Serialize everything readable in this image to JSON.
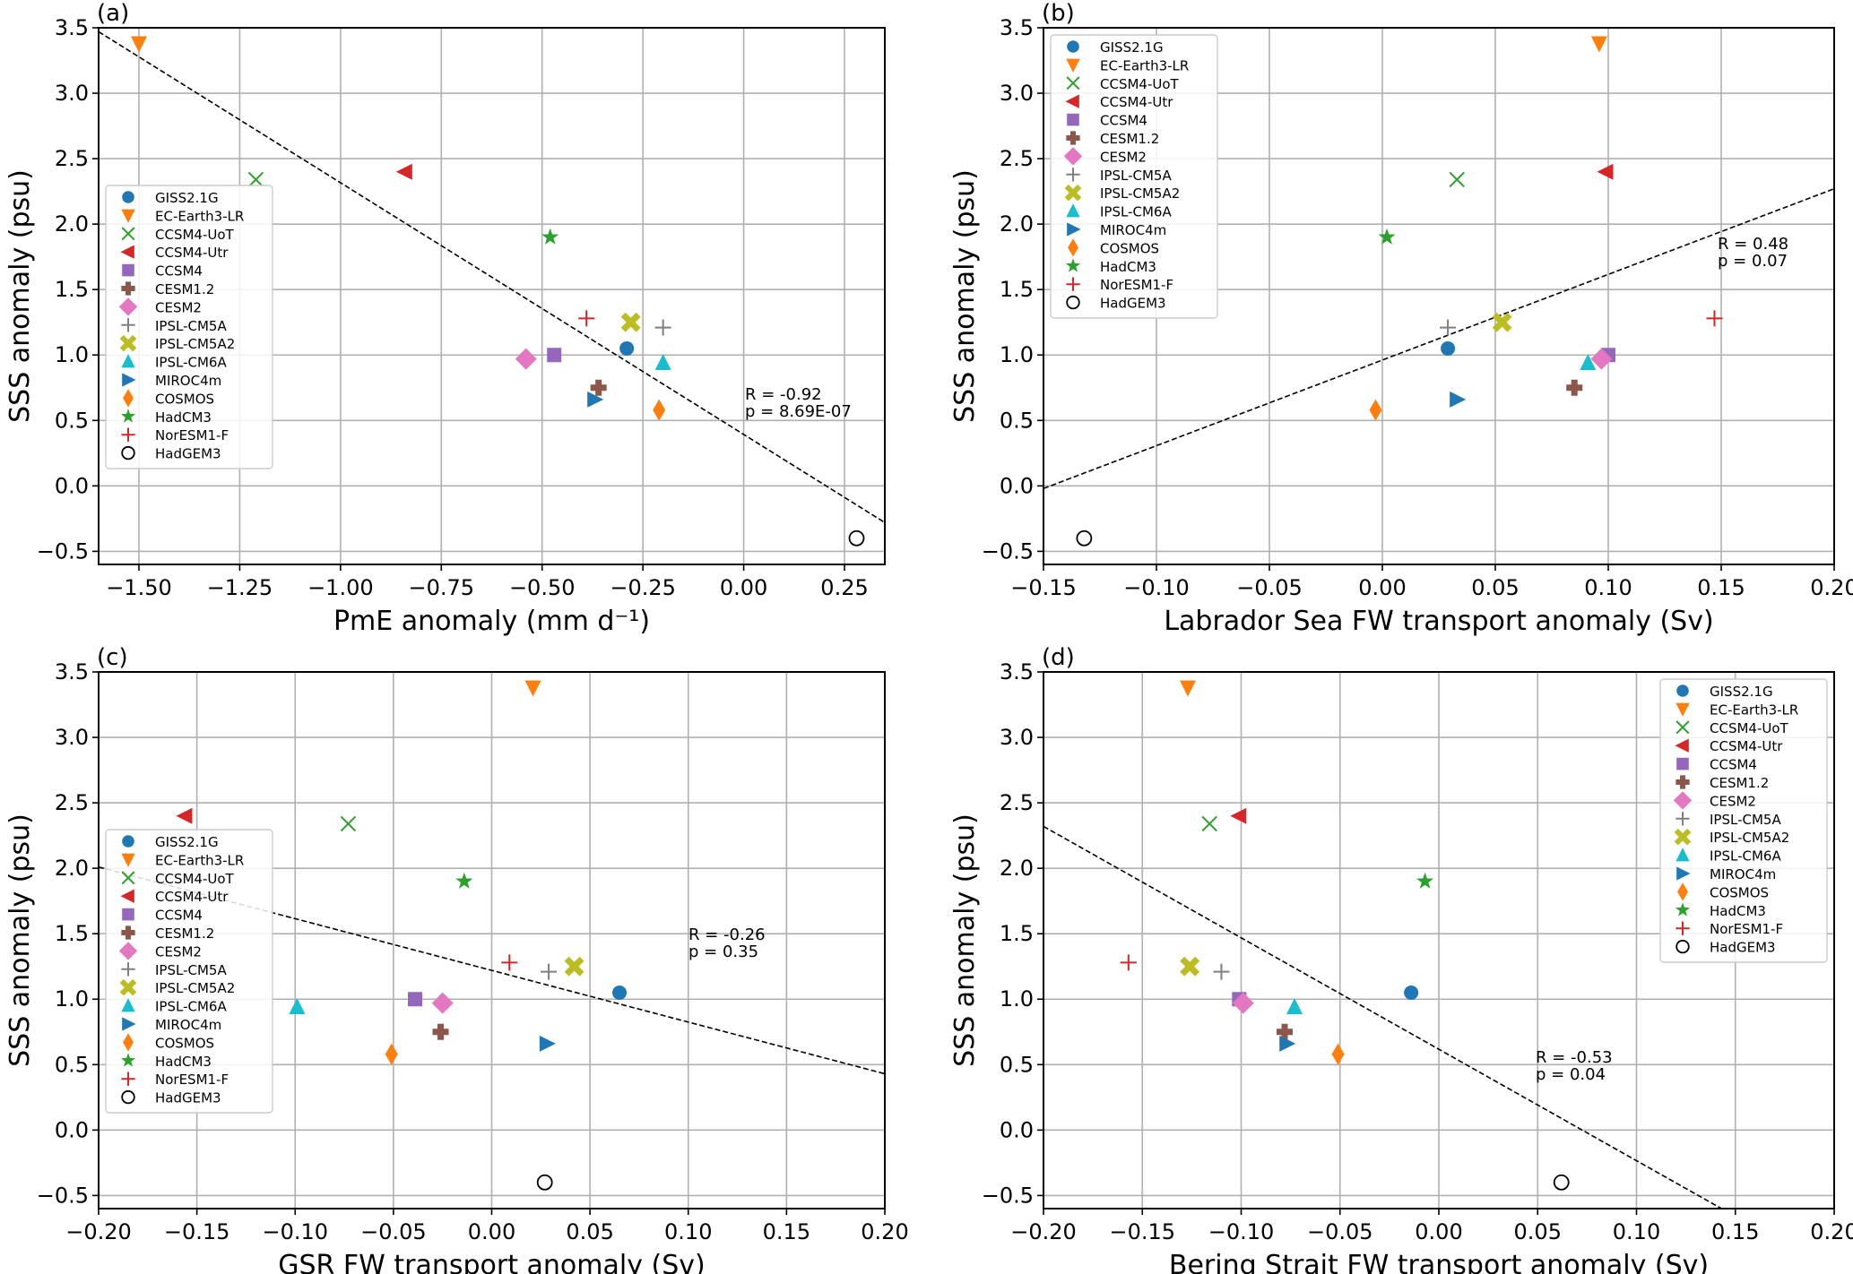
{
  "figure": {
    "ylabel": "SSS anomaly (psu)"
  },
  "models": [
    {
      "name": "GISS2.1G",
      "marker": "circle",
      "color": "#1f77b4"
    },
    {
      "name": "EC-Earth3-LR",
      "marker": "triangle-down",
      "color": "#ff7f0e"
    },
    {
      "name": "CCSM4-UoT",
      "marker": "x",
      "color": "#2ca02c"
    },
    {
      "name": "CCSM4-Utr",
      "marker": "triangle-left",
      "color": "#d62728"
    },
    {
      "name": "CCSM4",
      "marker": "square",
      "color": "#9467bd"
    },
    {
      "name": "CESM1.2",
      "marker": "plus-filled",
      "color": "#8c564b"
    },
    {
      "name": "CESM2",
      "marker": "diamond",
      "color": "#e377c2"
    },
    {
      "name": "IPSL-CM5A",
      "marker": "plus",
      "color": "#7f7f7f"
    },
    {
      "name": "IPSL-CM5A2",
      "marker": "x-filled",
      "color": "#bcbd22"
    },
    {
      "name": "IPSL-CM6A",
      "marker": "triangle-up",
      "color": "#17becf"
    },
    {
      "name": "MIROC4m",
      "marker": "triangle-right",
      "color": "#1f77b4"
    },
    {
      "name": "COSMOS",
      "marker": "thin-diamond",
      "color": "#ff7f0e"
    },
    {
      "name": "HadCM3",
      "marker": "star",
      "color": "#2ca02c"
    },
    {
      "name": "NorESM1-F",
      "marker": "plus",
      "color": "#d62728"
    },
    {
      "name": "HadGEM3",
      "marker": "open-circle",
      "color": "#000000"
    }
  ],
  "chart_data": [
    {
      "panel": "(a)",
      "type": "scatter",
      "xlabel": "PmE anomaly (mm d⁻¹)",
      "ylabel": "SSS anomaly (psu)",
      "xlim": [
        -1.6,
        0.35
      ],
      "ylim": [
        -0.6,
        3.5
      ],
      "xticks": [
        -1.5,
        -1.25,
        -1.0,
        -0.75,
        -0.5,
        -0.25,
        0.0,
        0.25
      ],
      "xtick_labels": [
        "−1.50",
        "−1.25",
        "−1.00",
        "−0.75",
        "−0.50",
        "−0.25",
        "0.00",
        "0.25"
      ],
      "yticks": [
        -0.5,
        0.0,
        0.5,
        1.0,
        1.5,
        2.0,
        2.5,
        3.0,
        3.5
      ],
      "ytick_labels": [
        "−0.5",
        "0.0",
        "0.5",
        "1.0",
        "1.5",
        "2.0",
        "2.5",
        "3.0",
        "3.5"
      ],
      "grid": true,
      "legend": "center-left",
      "x": [
        -0.29,
        -1.5,
        -1.21,
        -0.84,
        -0.47,
        -0.36,
        -0.54,
        -0.2,
        -0.28,
        -0.2,
        -0.37,
        -0.21,
        -0.48,
        -0.39,
        0.28
      ],
      "y": [
        1.05,
        3.38,
        2.34,
        2.4,
        1.0,
        0.75,
        0.97,
        1.21,
        1.25,
        0.94,
        0.66,
        0.58,
        1.9,
        1.28,
        -0.4
      ],
      "fit_line": {
        "x": [
          -1.6,
          0.35
        ],
        "y": [
          3.47,
          -0.28
        ]
      },
      "annotation": {
        "r": "R = -0.92",
        "p": "p = 8.69E-07",
        "x": 0.0,
        "y": 0.6
      }
    },
    {
      "panel": "(b)",
      "type": "scatter",
      "xlabel": "Labrador Sea FW transport anomaly (Sv)",
      "ylabel": "SSS anomaly (psu)",
      "xlim": [
        -0.15,
        0.2
      ],
      "ylim": [
        -0.6,
        3.5
      ],
      "xticks": [
        -0.15,
        -0.1,
        -0.05,
        0.0,
        0.05,
        0.1,
        0.15,
        0.2
      ],
      "xtick_labels": [
        "−0.15",
        "−0.10",
        "−0.05",
        "0.00",
        "0.05",
        "0.10",
        "0.15",
        "0.20"
      ],
      "yticks": [
        -0.5,
        0.0,
        0.5,
        1.0,
        1.5,
        2.0,
        2.5,
        3.0,
        3.5
      ],
      "ytick_labels": [
        "−0.5",
        "0.0",
        "0.5",
        "1.0",
        "1.5",
        "2.0",
        "2.5",
        "3.0",
        "3.5"
      ],
      "grid": true,
      "legend": "top-left",
      "x": [
        0.029,
        0.096,
        0.033,
        0.099,
        0.1,
        0.085,
        0.097,
        0.029,
        0.053,
        0.091,
        0.033,
        -0.003,
        0.002,
        0.147,
        -0.132
      ],
      "y": [
        1.05,
        3.38,
        2.34,
        2.4,
        1.0,
        0.75,
        0.97,
        1.21,
        1.25,
        0.94,
        0.66,
        0.58,
        1.9,
        1.28,
        -0.4
      ],
      "fit_line": {
        "x": [
          -0.15,
          0.2
        ],
        "y": [
          -0.02,
          2.27
        ]
      },
      "annotation": {
        "r": "R = 0.48",
        "p": "p = 0.07",
        "x": 0.15,
        "y": 1.75
      }
    },
    {
      "panel": "(c)",
      "type": "scatter",
      "xlabel": "GSR FW transport anomaly (Sv)",
      "ylabel": "SSS anomaly (psu)",
      "xlim": [
        -0.2,
        0.2
      ],
      "ylim": [
        -0.6,
        3.5
      ],
      "xticks": [
        -0.2,
        -0.15,
        -0.1,
        -0.05,
        0.0,
        0.05,
        0.1,
        0.15,
        0.2
      ],
      "xtick_labels": [
        "−0.20",
        "−0.15",
        "−0.10",
        "−0.05",
        "0.00",
        "0.05",
        "0.10",
        "0.15",
        "0.20"
      ],
      "yticks": [
        -0.5,
        0.0,
        0.5,
        1.0,
        1.5,
        2.0,
        2.5,
        3.0,
        3.5
      ],
      "ytick_labels": [
        "−0.5",
        "0.0",
        "0.5",
        "1.0",
        "1.5",
        "2.0",
        "2.5",
        "3.0",
        "3.5"
      ],
      "grid": true,
      "legend": "center-left",
      "x": [
        0.065,
        0.021,
        -0.073,
        -0.156,
        -0.039,
        -0.026,
        -0.025,
        0.029,
        0.042,
        -0.099,
        0.028,
        -0.051,
        -0.014,
        0.009,
        0.027
      ],
      "y": [
        1.05,
        3.38,
        2.34,
        2.4,
        1.0,
        0.75,
        0.97,
        1.21,
        1.25,
        0.94,
        0.66,
        0.58,
        1.9,
        1.28,
        -0.4
      ],
      "fit_line": {
        "x": [
          -0.2,
          0.2
        ],
        "y": [
          2.01,
          0.43
        ]
      },
      "annotation": {
        "r": "R = -0.26",
        "p": "p = 0.35",
        "x": 0.1,
        "y": 1.35
      }
    },
    {
      "panel": "(d)",
      "type": "scatter",
      "xlabel": "Bering Strait FW transport anomaly (Sv)",
      "ylabel": "SSS anomaly (psu)",
      "xlim": [
        -0.2,
        0.2
      ],
      "ylim": [
        -0.6,
        3.5
      ],
      "xticks": [
        -0.2,
        -0.15,
        -0.1,
        -0.05,
        0.0,
        0.05,
        0.1,
        0.15,
        0.2
      ],
      "xtick_labels": [
        "−0.20",
        "−0.15",
        "−0.10",
        "−0.05",
        "0.00",
        "0.05",
        "0.10",
        "0.15",
        "0.20"
      ],
      "yticks": [
        -0.5,
        0.0,
        0.5,
        1.0,
        1.5,
        2.0,
        2.5,
        3.0,
        3.5
      ],
      "ytick_labels": [
        "−0.5",
        "0.0",
        "0.5",
        "1.0",
        "1.5",
        "2.0",
        "2.5",
        "3.0",
        "3.5"
      ],
      "grid": true,
      "legend": "top-right",
      "x": [
        -0.014,
        -0.127,
        -0.116,
        -0.101,
        -0.101,
        -0.078,
        -0.099,
        -0.11,
        -0.126,
        -0.073,
        -0.077,
        -0.051,
        -0.007,
        -0.157,
        0.062
      ],
      "y": [
        1.05,
        3.38,
        2.34,
        2.4,
        1.0,
        0.75,
        0.97,
        1.21,
        1.25,
        0.94,
        0.66,
        0.58,
        1.9,
        1.28,
        -0.4
      ],
      "fit_line": {
        "x": [
          -0.2,
          0.143
        ],
        "y": [
          2.32,
          -0.6
        ]
      },
      "annotation": {
        "r": "R = -0.53",
        "p": "p = 0.04",
        "x": 0.05,
        "y": 0.45
      }
    }
  ]
}
